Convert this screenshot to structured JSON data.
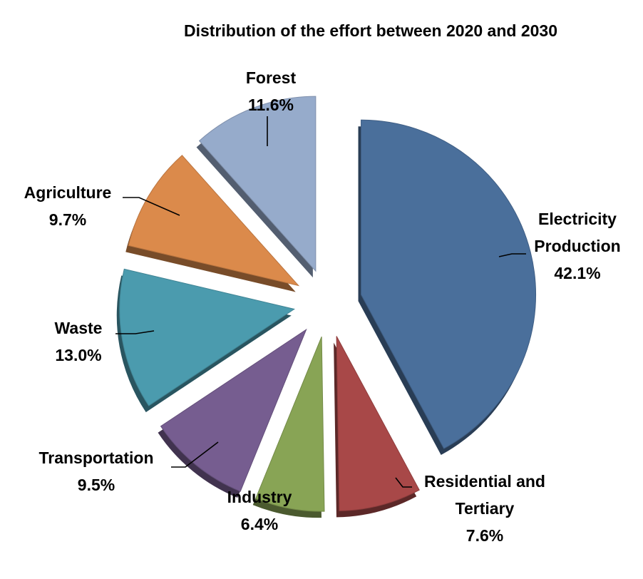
{
  "chart_data": {
    "type": "pie",
    "title": "Distribution of the effort between 2020 and 2030",
    "value_format": "percent",
    "slices": [
      {
        "name": "Electricity Production",
        "label_lines": [
          "Electricity",
          "Production"
        ],
        "value": 42.1,
        "display": "42.1%",
        "color": "#4A6F9B"
      },
      {
        "name": "Residential and Tertiary",
        "label_lines": [
          "Residential and",
          "Tertiary"
        ],
        "value": 7.6,
        "display": "7.6%",
        "color": "#A84848"
      },
      {
        "name": "Industry",
        "label_lines": [
          "Industry"
        ],
        "value": 6.4,
        "display": "6.4%",
        "color": "#88A455"
      },
      {
        "name": "Transportation",
        "label_lines": [
          "Transportation"
        ],
        "value": 9.5,
        "display": "9.5%",
        "color": "#765D90"
      },
      {
        "name": "Waste",
        "label_lines": [
          "Waste"
        ],
        "value": 13.0,
        "display": "13.0%",
        "color": "#4B9BAE"
      },
      {
        "name": "Agriculture",
        "label_lines": [
          "Agriculture"
        ],
        "value": 9.7,
        "display": "9.7%",
        "color": "#DB8A4B"
      },
      {
        "name": "Forest",
        "label_lines": [
          "Forest"
        ],
        "value": 11.6,
        "display": "11.6%",
        "color": "#96ABCB"
      }
    ],
    "start_angle": "12 o'clock",
    "direction": "clockwise",
    "exploded": true,
    "legend": "none",
    "labels": "outside with leader lines"
  }
}
